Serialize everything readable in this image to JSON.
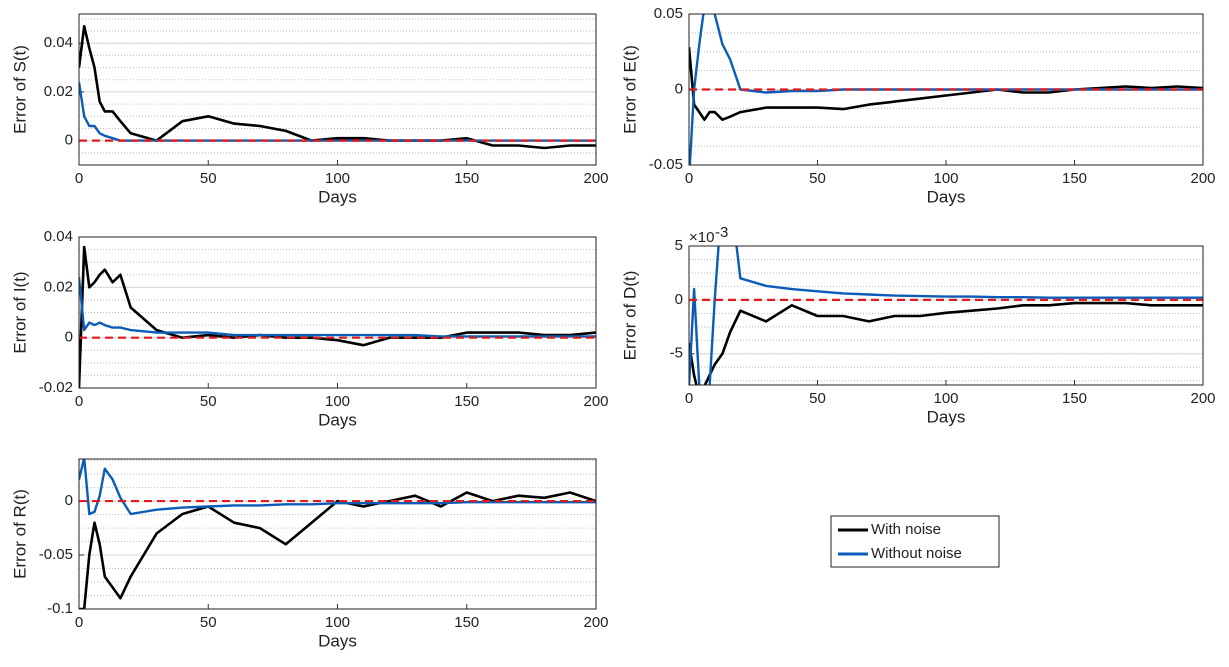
{
  "chart_data": [
    {
      "type": "line",
      "y_label": "Error of S(t)",
      "x_label": "Days",
      "x": [
        0,
        2,
        4,
        6,
        8,
        10,
        13,
        16,
        20,
        30,
        40,
        50,
        60,
        70,
        80,
        90,
        100,
        110,
        120,
        130,
        140,
        150,
        160,
        170,
        180,
        190,
        200
      ],
      "series": [
        {
          "color": "#000000",
          "values": [
            0.03,
            0.047,
            0.038,
            0.03,
            0.016,
            0.012,
            0.012,
            0.008,
            0.003,
            0.0,
            0.008,
            0.01,
            0.007,
            0.006,
            0.004,
            0.0,
            0.001,
            0.001,
            0.0,
            0.0,
            0.0,
            0.001,
            -0.002,
            -0.002,
            -0.003,
            -0.002,
            -0.002
          ]
        },
        {
          "color": "#0a5cb8",
          "values": [
            0.024,
            0.01,
            0.006,
            0.006,
            0.003,
            0.002,
            0.001,
            0.0,
            0.0,
            0.0,
            0.0,
            0.0,
            0.0,
            0.0,
            0.0,
            0.0,
            0.0,
            0.0,
            0.0,
            0.0,
            0.0,
            0.0,
            0.0,
            0.0,
            0.0,
            0.0,
            0.0
          ]
        }
      ],
      "xlim": [
        0,
        200
      ],
      "xticks": [
        0,
        50,
        100,
        150,
        200
      ],
      "ylim": [
        -0.01,
        0.052
      ],
      "yticks": [
        0,
        0.02,
        0.04
      ],
      "grid": true,
      "minor_grid": true,
      "reference_line": {
        "value": 0,
        "color": "#e01b1b"
      }
    },
    {
      "type": "line",
      "y_label": "Error of E(t)",
      "x_label": "Days",
      "x": [
        0,
        2,
        4,
        6,
        8,
        10,
        13,
        16,
        20,
        30,
        40,
        50,
        60,
        70,
        80,
        90,
        100,
        110,
        120,
        130,
        140,
        150,
        160,
        170,
        180,
        190,
        200
      ],
      "series": [
        {
          "color": "#000000",
          "values": [
            0.028,
            -0.01,
            -0.015,
            -0.02,
            -0.015,
            -0.015,
            -0.02,
            -0.018,
            -0.015,
            -0.012,
            -0.012,
            -0.012,
            -0.013,
            -0.01,
            -0.008,
            -0.006,
            -0.004,
            -0.002,
            0.0,
            -0.002,
            -0.002,
            0.0,
            0.001,
            0.002,
            0.001,
            0.002,
            0.001
          ]
        },
        {
          "color": "#0a5cb8",
          "values": [
            -0.06,
            0.0,
            0.03,
            0.055,
            0.06,
            0.05,
            0.03,
            0.02,
            0.0,
            -0.002,
            -0.001,
            -0.001,
            0.0,
            0.0,
            0.0,
            0.0,
            0.0,
            0.0,
            0.0,
            0.0,
            0.0,
            0.0,
            0.0,
            0.0,
            0.0,
            0.0,
            0.0
          ]
        }
      ],
      "xlim": [
        0,
        200
      ],
      "xticks": [
        0,
        50,
        100,
        150,
        200
      ],
      "ylim": [
        -0.05,
        0.05
      ],
      "yticks": [
        -0.05,
        0,
        0.05
      ],
      "grid": true,
      "minor_grid": true,
      "reference_line": {
        "value": 0,
        "color": "#e01b1b"
      }
    },
    {
      "type": "line",
      "y_label": "Error of I(t)",
      "x_label": "Days",
      "x": [
        0,
        2,
        4,
        6,
        8,
        10,
        13,
        16,
        20,
        30,
        40,
        50,
        60,
        70,
        80,
        90,
        100,
        110,
        120,
        130,
        140,
        150,
        160,
        170,
        180,
        190,
        200
      ],
      "series": [
        {
          "color": "#000000",
          "values": [
            -0.02,
            0.036,
            0.02,
            0.022,
            0.025,
            0.027,
            0.022,
            0.025,
            0.012,
            0.003,
            0.0,
            0.001,
            0.0,
            0.001,
            0.0,
            0.0,
            -0.001,
            -0.003,
            0.0,
            0.0,
            0.0,
            0.002,
            0.002,
            0.002,
            0.001,
            0.001,
            0.002
          ]
        },
        {
          "color": "#0a5cb8",
          "values": [
            0.024,
            0.003,
            0.006,
            0.005,
            0.006,
            0.005,
            0.004,
            0.004,
            0.003,
            0.002,
            0.002,
            0.002,
            0.001,
            0.001,
            0.001,
            0.001,
            0.001,
            0.001,
            0.001,
            0.001,
            0.0005,
            0.0005,
            0.0005,
            0.0005,
            0.0005,
            0.0005,
            0.0005
          ]
        }
      ],
      "xlim": [
        0,
        200
      ],
      "xticks": [
        0,
        50,
        100,
        150,
        200
      ],
      "ylim": [
        -0.02,
        0.04
      ],
      "yticks": [
        -0.02,
        0,
        0.02,
        0.04
      ],
      "grid": true,
      "minor_grid": true,
      "reference_line": {
        "value": 0,
        "color": "#e01b1b"
      }
    },
    {
      "type": "line",
      "y_label": "Error of D(t)",
      "x_label": "Days",
      "y_multiplier": "×10",
      "y_multiplier_exponent": "-3",
      "x": [
        0,
        2,
        4,
        6,
        8,
        10,
        13,
        16,
        20,
        30,
        40,
        50,
        60,
        70,
        80,
        90,
        100,
        110,
        120,
        130,
        140,
        150,
        160,
        170,
        180,
        190,
        200
      ],
      "series": [
        {
          "color": "#000000",
          "values": [
            -4,
            -7,
            -9,
            -8,
            -7,
            -6,
            -5,
            -3,
            -1,
            -2,
            -0.5,
            -1.5,
            -1.5,
            -2,
            -1.5,
            -1.5,
            -1.2,
            -1,
            -0.8,
            -0.5,
            -0.5,
            -0.3,
            -0.3,
            -0.3,
            -0.5,
            -0.5,
            -0.5
          ]
        },
        {
          "color": "#0a5cb8",
          "values": [
            -8,
            1,
            -8,
            -8,
            -8,
            0,
            10,
            10,
            2,
            1.3,
            1,
            0.8,
            0.6,
            0.5,
            0.4,
            0.35,
            0.3,
            0.3,
            0.25,
            0.25,
            0.2,
            0.2,
            0.2,
            0.2,
            0.2,
            0.2,
            0.2
          ]
        }
      ],
      "xlim": [
        0,
        200
      ],
      "xticks": [
        0,
        50,
        100,
        150,
        200
      ],
      "ylim": [
        -7.9,
        5
      ],
      "yticks": [
        -5,
        0,
        5
      ],
      "grid": true,
      "minor_grid": true,
      "reference_line": {
        "value": 0,
        "color": "#e01b1b"
      }
    },
    {
      "type": "line",
      "y_label": "Error of R(t)",
      "x_label": "Days",
      "x": [
        0,
        2,
        4,
        6,
        8,
        10,
        13,
        16,
        20,
        30,
        40,
        50,
        60,
        70,
        80,
        90,
        100,
        110,
        120,
        130,
        140,
        150,
        160,
        170,
        180,
        190,
        200
      ],
      "series": [
        {
          "color": "#000000",
          "values": [
            -0.1,
            -0.1,
            -0.05,
            -0.02,
            -0.04,
            -0.07,
            -0.08,
            -0.09,
            -0.07,
            -0.03,
            -0.012,
            -0.005,
            -0.02,
            -0.025,
            -0.04,
            -0.02,
            0.0,
            -0.005,
            0.0,
            0.005,
            -0.005,
            0.008,
            0.0,
            0.005,
            0.003,
            0.008,
            0.0
          ]
        },
        {
          "color": "#0a5cb8",
          "values": [
            0.02,
            0.04,
            -0.012,
            -0.01,
            0.005,
            0.03,
            0.02,
            0.003,
            -0.012,
            -0.008,
            -0.006,
            -0.005,
            -0.004,
            -0.004,
            -0.003,
            -0.003,
            -0.002,
            -0.002,
            -0.002,
            -0.002,
            -0.002,
            -0.001,
            -0.001,
            -0.001,
            -0.001,
            -0.001,
            -0.001
          ]
        }
      ],
      "xlim": [
        0,
        200
      ],
      "xticks": [
        0,
        50,
        100,
        150,
        200
      ],
      "ylim": [
        -0.1,
        0.039
      ],
      "yticks": [
        -0.1,
        -0.05,
        0
      ],
      "grid": true,
      "minor_grid": true,
      "reference_line": {
        "value": 0,
        "color": "#e01b1b"
      }
    }
  ],
  "legend": {
    "entries": [
      {
        "name": "With noise",
        "color": "#000000"
      },
      {
        "name": "Without noise",
        "color": "#0a5cb8"
      }
    ]
  }
}
